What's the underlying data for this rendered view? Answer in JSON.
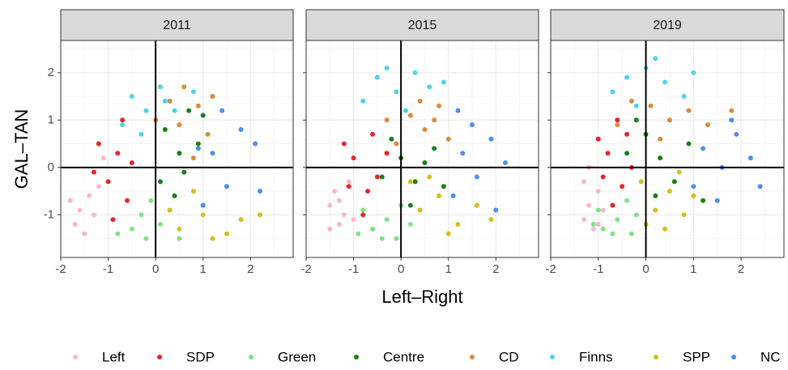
{
  "chart_data": [
    {
      "type": "scatter",
      "title": "2011",
      "ylabel": "GAL–TAN",
      "xlim": [
        -2,
        2.9
      ],
      "ylim": [
        -1.9,
        2.68
      ],
      "xticks": [
        -2,
        -1,
        0,
        1,
        2
      ],
      "yticks": [
        -1,
        0,
        1,
        2
      ],
      "x_minor_ticks": [
        -1.5,
        -0.5,
        0.5,
        1.5,
        2.5
      ],
      "y_minor_ticks": [
        -1.5,
        -0.5,
        0.5,
        1.5,
        2.5
      ],
      "grid": true,
      "reference_lines": {
        "x": 0,
        "y": 0
      },
      "legend": "bottom",
      "series": [
        {
          "name": "Left",
          "color": "#f7b6d2",
          "x": [
            -1.6,
            -1.4,
            -1.7,
            -1.2,
            -1.5,
            -1.8,
            -1.3,
            -1.1
          ],
          "y": [
            -0.9,
            -0.6,
            -1.2,
            -0.4,
            -1.4,
            -0.7,
            -1.0,
            0.2
          ]
        },
        {
          "name": "SDP",
          "color": "#e8242a",
          "x": [
            -1.0,
            -0.8,
            -1.2,
            -0.6,
            -0.9,
            -0.5,
            -1.3,
            -0.7
          ],
          "y": [
            -0.3,
            0.3,
            0.5,
            -0.7,
            -1.1,
            0.1,
            -0.1,
            1.0
          ]
        },
        {
          "name": "Green",
          "color": "#7de384",
          "x": [
            -0.5,
            -0.2,
            0.1,
            -0.8,
            0.3,
            -0.3,
            0.5,
            -0.1
          ],
          "y": [
            -1.3,
            -1.5,
            -1.2,
            -1.4,
            -0.9,
            -1.0,
            -1.5,
            -0.7
          ]
        },
        {
          "name": "Centre",
          "color": "#1a7f1a",
          "x": [
            0.2,
            0.5,
            0.7,
            0.1,
            0.9,
            0.4,
            1.0,
            0.6
          ],
          "y": [
            0.8,
            0.3,
            1.2,
            -0.3,
            0.5,
            -0.6,
            1.1,
            -0.1
          ]
        },
        {
          "name": "CD",
          "color": "#db8a3c",
          "x": [
            0.3,
            0.6,
            0.9,
            0.0,
            1.2,
            0.5,
            0.8,
            1.1
          ],
          "y": [
            1.4,
            1.7,
            1.3,
            1.0,
            1.5,
            0.9,
            0.2,
            0.7
          ]
        },
        {
          "name": "Finns",
          "color": "#4dd2ee",
          "x": [
            -0.5,
            -0.2,
            0.1,
            0.4,
            -0.7,
            0.8,
            -0.3,
            0.2
          ],
          "y": [
            1.5,
            1.2,
            1.7,
            1.2,
            0.9,
            1.6,
            0.7,
            1.4
          ]
        },
        {
          "name": "SPP",
          "color": "#d4bf1c",
          "x": [
            0.5,
            1.0,
            1.5,
            0.8,
            1.8,
            2.2,
            1.2,
            0.3
          ],
          "y": [
            -1.3,
            -1.0,
            -1.4,
            -0.5,
            -1.1,
            -1.0,
            -1.5,
            -0.9
          ]
        },
        {
          "name": "NC",
          "color": "#4d8ef0",
          "x": [
            1.2,
            1.5,
            1.8,
            1.0,
            2.1,
            1.4,
            2.2,
            0.9
          ],
          "y": [
            0.3,
            -0.4,
            0.8,
            -0.8,
            0.5,
            1.2,
            -0.5,
            0.4
          ]
        }
      ]
    },
    {
      "type": "scatter",
      "title": "2015",
      "xlabel": "Left–Right",
      "xlim": [
        -2,
        2.9
      ],
      "ylim": [
        -1.9,
        2.68
      ],
      "xticks": [
        -2,
        -1,
        0,
        1,
        2
      ],
      "yticks": [
        -1,
        0,
        1,
        2
      ],
      "x_minor_ticks": [
        -1.5,
        -0.5,
        0.5,
        1.5,
        2.5
      ],
      "y_minor_ticks": [
        -1.5,
        -0.5,
        0.5,
        1.5,
        2.5
      ],
      "grid": true,
      "reference_lines": {
        "x": 0,
        "y": 0
      },
      "series": [
        {
          "name": "Left",
          "color": "#f7b6d2",
          "x": [
            -1.5,
            -1.3,
            -1.4,
            -1.2,
            -1.5,
            -1.1,
            -1.3,
            -1.0
          ],
          "y": [
            -0.8,
            -1.2,
            -0.5,
            -1.0,
            -1.3,
            -0.3,
            -0.7,
            -1.1
          ]
        },
        {
          "name": "SDP",
          "color": "#e8242a",
          "x": [
            -1.0,
            -0.7,
            -1.2,
            -0.5,
            -0.8,
            -0.3,
            -1.1,
            -0.6
          ],
          "y": [
            0.2,
            -0.5,
            0.5,
            -0.2,
            -1.0,
            0.3,
            -0.4,
            0.7
          ]
        },
        {
          "name": "Green",
          "color": "#7de384",
          "x": [
            -0.6,
            -0.3,
            -0.1,
            -0.8,
            0.2,
            -0.4,
            0.0,
            -0.9
          ],
          "y": [
            -1.3,
            -1.1,
            -1.5,
            -0.9,
            -1.2,
            -1.5,
            -0.8,
            -1.4
          ]
        },
        {
          "name": "Centre",
          "color": "#1a7f1a",
          "x": [
            0.0,
            0.3,
            -0.2,
            0.5,
            0.2,
            0.7,
            -0.4,
            0.9
          ],
          "y": [
            0.2,
            -0.3,
            0.6,
            0.1,
            -0.8,
            0.4,
            -0.2,
            -0.4
          ]
        },
        {
          "name": "CD",
          "color": "#db8a3c",
          "x": [
            0.2,
            0.5,
            0.8,
            -0.3,
            1.0,
            0.4,
            -0.1,
            0.7
          ],
          "y": [
            1.1,
            0.8,
            1.3,
            1.0,
            0.6,
            1.4,
            0.5,
            1.0
          ]
        },
        {
          "name": "Finns",
          "color": "#4dd2ee",
          "x": [
            -0.5,
            -0.1,
            0.3,
            0.6,
            -0.8,
            0.1,
            0.9,
            -0.3
          ],
          "y": [
            1.9,
            1.6,
            2.0,
            1.7,
            1.4,
            1.2,
            1.8,
            2.1
          ]
        },
        {
          "name": "SPP",
          "color": "#d4bf1c",
          "x": [
            0.4,
            0.8,
            1.2,
            0.2,
            1.6,
            1.0,
            0.6,
            1.9
          ],
          "y": [
            -0.9,
            -0.6,
            -1.2,
            -0.3,
            -0.8,
            -1.4,
            -0.2,
            -1.1
          ]
        },
        {
          "name": "NC",
          "color": "#4d8ef0",
          "x": [
            1.3,
            1.6,
            1.9,
            1.1,
            2.2,
            1.5,
            2.0,
            1.2
          ],
          "y": [
            0.3,
            -0.2,
            0.6,
            -0.6,
            0.1,
            0.9,
            -0.9,
            1.2
          ]
        }
      ]
    },
    {
      "type": "scatter",
      "title": "2019",
      "xlim": [
        -2,
        2.9
      ],
      "ylim": [
        -1.9,
        2.68
      ],
      "xticks": [
        -2,
        -1,
        0,
        1,
        2
      ],
      "yticks": [
        -1,
        0,
        1,
        2
      ],
      "x_minor_ticks": [
        -1.5,
        -0.5,
        0.5,
        1.5,
        2.5
      ],
      "y_minor_ticks": [
        -1.5,
        -0.5,
        0.5,
        1.5,
        2.5
      ],
      "grid": true,
      "reference_lines": {
        "x": 0,
        "y": 0
      },
      "series": [
        {
          "name": "Left",
          "color": "#f7b6d2",
          "x": [
            -1.2,
            -1.3,
            -1.0,
            -1.1,
            -1.3,
            -0.9,
            -1.2,
            -1.0
          ],
          "y": [
            -0.8,
            -1.1,
            -0.5,
            -1.3,
            -0.3,
            -0.9,
            0.0,
            -1.2
          ]
        },
        {
          "name": "SDP",
          "color": "#e8242a",
          "x": [
            -0.8,
            -0.5,
            -1.0,
            -0.3,
            -0.7,
            -0.4,
            -0.9,
            -0.6
          ],
          "y": [
            0.3,
            -0.4,
            0.6,
            0.0,
            -0.8,
            0.7,
            -0.2,
            1.0
          ]
        },
        {
          "name": "Green",
          "color": "#7de384",
          "x": [
            -0.9,
            -0.6,
            -0.3,
            -1.0,
            -0.4,
            -0.7,
            -0.2,
            -1.1
          ],
          "y": [
            -1.3,
            -1.1,
            -1.4,
            -0.9,
            -0.7,
            -1.4,
            -1.0,
            -1.2
          ]
        },
        {
          "name": "Centre",
          "color": "#1a7f1a",
          "x": [
            0.0,
            0.3,
            -0.2,
            0.6,
            0.2,
            0.9,
            -0.4,
            1.2
          ],
          "y": [
            0.7,
            0.2,
            1.0,
            -0.3,
            -0.6,
            0.5,
            0.3,
            -0.7
          ]
        },
        {
          "name": "CD",
          "color": "#db8a3c",
          "x": [
            0.1,
            0.5,
            0.9,
            -0.3,
            1.3,
            0.3,
            1.8,
            -0.6
          ],
          "y": [
            1.3,
            1.0,
            1.2,
            1.4,
            0.9,
            0.6,
            1.2,
            0.9
          ]
        },
        {
          "name": "Finns",
          "color": "#4dd2ee",
          "x": [
            -0.4,
            0.0,
            0.4,
            -0.7,
            0.2,
            0.8,
            -0.2,
            1.0
          ],
          "y": [
            1.9,
            2.1,
            1.8,
            1.6,
            2.3,
            1.5,
            1.3,
            2.0
          ]
        },
        {
          "name": "SPP",
          "color": "#d4bf1c",
          "x": [
            0.2,
            0.5,
            0.0,
            0.8,
            -0.1,
            0.4,
            1.0,
            0.7
          ],
          "y": [
            -0.9,
            -0.5,
            -1.2,
            -1.0,
            -0.3,
            -1.3,
            -0.6,
            -0.1
          ]
        },
        {
          "name": "NC",
          "color": "#4d8ef0",
          "x": [
            1.2,
            1.6,
            1.9,
            1.0,
            2.2,
            1.5,
            1.8,
            2.4
          ],
          "y": [
            0.4,
            0.0,
            0.7,
            -0.4,
            0.2,
            -0.7,
            1.0,
            -0.4
          ]
        }
      ]
    }
  ]
}
